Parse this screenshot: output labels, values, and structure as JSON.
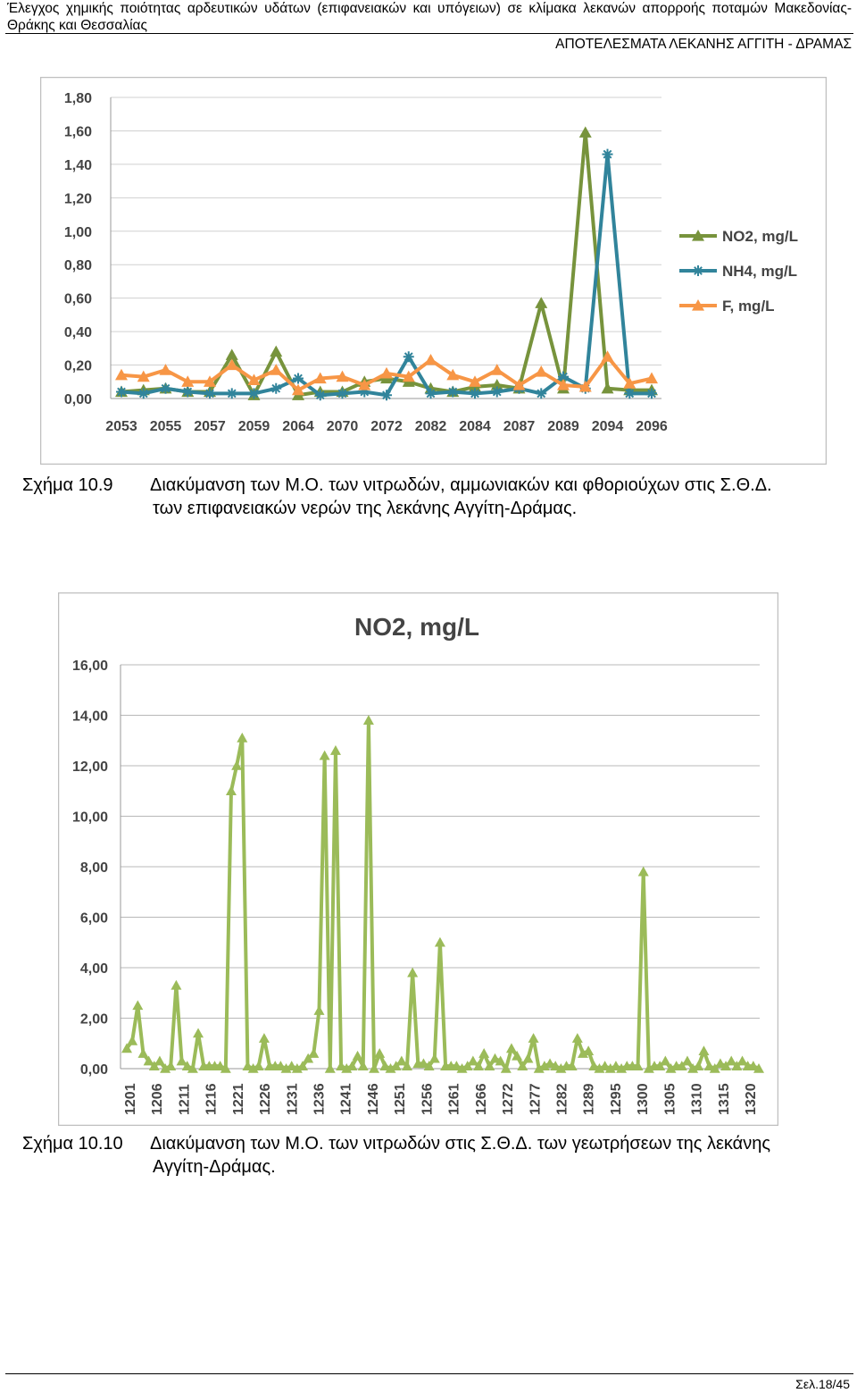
{
  "header": {
    "line1": "Έλεγχος χημικής ποιότητας αρδευτικών υδάτων (επιφανειακών και υπόγειων) σε κλίμακα λεκανών απορροής ποταμών Μακεδονίας-Θράκης και Θεσσαλίας",
    "section": "ΑΠΟΤΕΛΕΣΜΑΤΑ ΛΕΚΑΝΗΣ ΑΓΓΙΤΗ - ΔΡΑΜΑΣ"
  },
  "figure1": {
    "number": "Σχήμα 10.9",
    "caption_line1": "Διακύμανση των Μ.Ο. των νιτρωδών, αμμωνιακών και φθοριούχων στις Σ.Θ.Δ.",
    "caption_line2": "των επιφανειακών νερών της λεκάνης Αγγίτη-Δράμας."
  },
  "figure2": {
    "number": "Σχήμα 10.10",
    "caption_line1": "Διακύμανση των Μ.Ο. των νιτρωδών στις Σ.Θ.Δ. των γεωτρήσεων της λεκάνης",
    "caption_line2": "Αγγίτη-Δράμας."
  },
  "footer": {
    "page": "Σελ.18/45"
  },
  "chart_data": [
    {
      "type": "line",
      "title": "",
      "xlabel": "",
      "ylabel": "",
      "ylim": [
        0,
        1.8
      ],
      "yticks": [
        "0,00",
        "0,20",
        "0,40",
        "0,60",
        "0,80",
        "1,00",
        "1,20",
        "1,40",
        "1,60",
        "1,80"
      ],
      "xtick_labels": [
        "2053",
        "2055",
        "2057",
        "2059",
        "2064",
        "2070",
        "2072",
        "2082",
        "2084",
        "2087",
        "2089",
        "2094",
        "2096"
      ],
      "point_count": 25,
      "grid": true,
      "legend": "right",
      "series": [
        {
          "name": "NO2, mg/L",
          "color": "#77933c",
          "marker": "triangle",
          "values": [
            0.04,
            0.05,
            0.06,
            0.04,
            0.04,
            0.26,
            0.02,
            0.28,
            0.02,
            0.04,
            0.04,
            0.1,
            0.12,
            0.1,
            0.06,
            0.04,
            0.07,
            0.08,
            0.06,
            0.57,
            0.06,
            1.59,
            0.06,
            0.05,
            0.05
          ]
        },
        {
          "name": "NH4, mg/L",
          "color": "#31849b",
          "marker": "asterisk",
          "values": [
            0.04,
            0.03,
            0.06,
            0.04,
            0.03,
            0.03,
            0.03,
            0.06,
            0.12,
            0.02,
            0.03,
            0.04,
            0.02,
            0.25,
            0.03,
            0.04,
            0.03,
            0.04,
            0.06,
            0.03,
            0.13,
            0.06,
            1.46,
            0.03,
            0.03
          ]
        },
        {
          "name": "F, mg/L",
          "color": "#f79646",
          "marker": "triangle",
          "values": [
            0.14,
            0.13,
            0.17,
            0.1,
            0.1,
            0.2,
            0.11,
            0.17,
            0.05,
            0.12,
            0.13,
            0.08,
            0.15,
            0.13,
            0.23,
            0.14,
            0.1,
            0.17,
            0.08,
            0.16,
            0.08,
            0.07,
            0.25,
            0.09,
            0.12
          ]
        }
      ]
    },
    {
      "type": "line",
      "title": "NO2, mg/L",
      "xlabel": "",
      "ylabel": "",
      "ylim": [
        0,
        16
      ],
      "yticks": [
        "0,00",
        "2,00",
        "4,00",
        "6,00",
        "8,00",
        "10,00",
        "12,00",
        "14,00",
        "16,00"
      ],
      "xtick_labels": [
        "1201",
        "1206",
        "1211",
        "1216",
        "1221",
        "1226",
        "1231",
        "1236",
        "1241",
        "1246",
        "1251",
        "1256",
        "1261",
        "1266",
        "1272",
        "1277",
        "1282",
        "1289",
        "1295",
        "1300",
        "1305",
        "1310",
        "1315",
        "1320"
      ],
      "grid": true,
      "series": [
        {
          "name": "NO2, mg/L",
          "color": "#9bbb59",
          "marker": "triangle",
          "values": [
            0.8,
            1.1,
            2.5,
            0.6,
            0.3,
            0.1,
            0.3,
            0.0,
            0.1,
            3.3,
            0.3,
            0.1,
            0.0,
            1.4,
            0.1,
            0.1,
            0.1,
            0.1,
            0.0,
            11.0,
            12.0,
            13.1,
            0.1,
            0.0,
            0.1,
            1.2,
            0.1,
            0.1,
            0.1,
            0.0,
            0.1,
            0.0,
            0.1,
            0.4,
            0.6,
            2.3,
            12.4,
            0.0,
            12.6,
            0.1,
            0.0,
            0.1,
            0.5,
            0.1,
            13.8,
            0.0,
            0.6,
            0.1,
            0.0,
            0.1,
            0.3,
            0.1,
            3.8,
            0.2,
            0.2,
            0.1,
            0.4,
            5.0,
            0.1,
            0.1,
            0.1,
            0.0,
            0.1,
            0.3,
            0.1,
            0.6,
            0.1,
            0.4,
            0.3,
            0.0,
            0.8,
            0.5,
            0.1,
            0.4,
            1.2,
            0.0,
            0.1,
            0.2,
            0.1,
            0.0,
            0.1,
            0.1,
            1.2,
            0.6,
            0.7,
            0.1,
            0.0,
            0.1,
            0.0,
            0.1,
            0.0,
            0.1,
            0.1,
            0.1,
            7.8,
            0.0,
            0.1,
            0.1,
            0.3,
            0.0,
            0.1,
            0.1,
            0.3,
            0.0,
            0.1,
            0.7,
            0.1,
            0.0,
            0.2,
            0.1,
            0.3,
            0.1,
            0.3,
            0.1,
            0.1,
            0.0
          ]
        }
      ]
    }
  ]
}
